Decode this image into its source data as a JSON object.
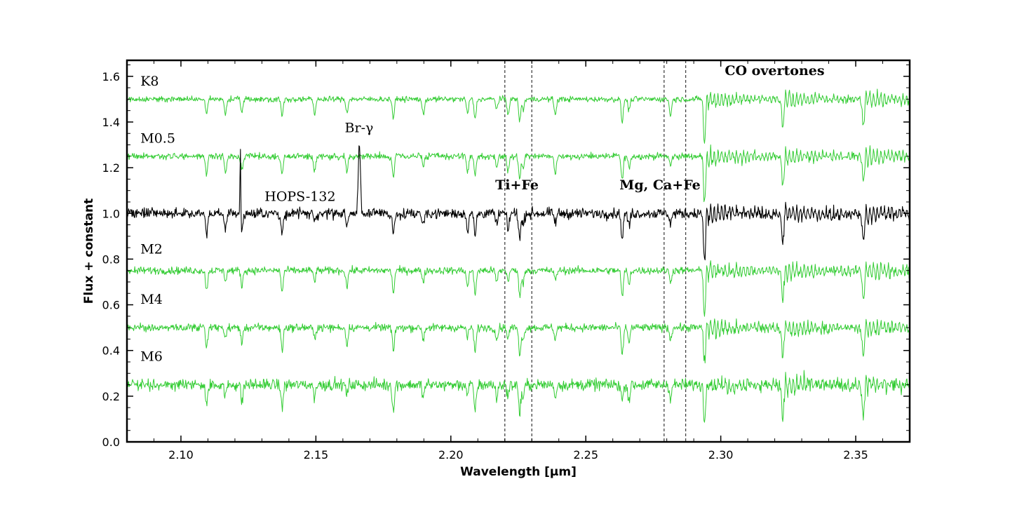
{
  "chart_data": {
    "type": "line",
    "xlabel": "Wavelength [μm]",
    "ylabel": "Flux + constant",
    "xlim": [
      2.08,
      2.37
    ],
    "ylim": [
      0.0,
      1.67
    ],
    "x_ticks": [
      2.1,
      2.15,
      2.2,
      2.25,
      2.3,
      2.35
    ],
    "x_tick_labels": [
      "2.10",
      "2.15",
      "2.20",
      "2.25",
      "2.30",
      "2.35"
    ],
    "y_ticks": [
      0.0,
      0.2,
      0.4,
      0.6,
      0.8,
      1.0,
      1.2,
      1.4,
      1.6
    ],
    "y_tick_labels": [
      "0.0",
      "0.2",
      "0.4",
      "0.6",
      "0.8",
      "1.0",
      "1.2",
      "1.4",
      "1.6"
    ],
    "grid": false,
    "colors": {
      "template": "#33cc33",
      "target": "#000000",
      "marker_lines": "#444444"
    },
    "marker_lines_x": [
      2.22,
      2.23,
      2.279,
      2.287
    ],
    "series": [
      {
        "name": "K8",
        "color": "#33cc33",
        "offset": 1.5,
        "noise": 0.012
      },
      {
        "name": "M0.5",
        "color": "#33cc33",
        "offset": 1.25,
        "noise": 0.014
      },
      {
        "name": "HOPS-132",
        "color": "#000000",
        "offset": 1.0,
        "noise": 0.022
      },
      {
        "name": "M2",
        "color": "#33cc33",
        "offset": 0.75,
        "noise": 0.016
      },
      {
        "name": "M4",
        "color": "#33cc33",
        "offset": 0.5,
        "noise": 0.017
      },
      {
        "name": "M6",
        "color": "#33cc33",
        "offset": 0.25,
        "noise": 0.025
      }
    ],
    "series_labels": [
      {
        "text": "K8",
        "x": 2.085,
        "y": 1.56
      },
      {
        "text": "M0.5",
        "x": 2.085,
        "y": 1.31
      },
      {
        "text": "HOPS-132",
        "x": 2.131,
        "y": 1.055
      },
      {
        "text": "M2",
        "x": 2.085,
        "y": 0.825
      },
      {
        "text": "M4",
        "x": 2.085,
        "y": 0.605
      },
      {
        "text": "M6",
        "x": 2.085,
        "y": 0.355
      }
    ],
    "annotations": [
      {
        "text": "Br-γ",
        "x": 2.166,
        "y": 1.355,
        "weight": "normal"
      },
      {
        "text": "Ti+Fe",
        "x": 2.2245,
        "y": 1.105,
        "weight": "bold"
      },
      {
        "text": "Mg, Ca+Fe",
        "x": 2.2775,
        "y": 1.105,
        "weight": "bold"
      },
      {
        "text": "CO overtones",
        "x": 2.3015,
        "y": 1.605,
        "weight": "bold"
      }
    ],
    "emission_lines": [
      {
        "name": "narrow spike",
        "x": 2.122,
        "height": 0.33,
        "series": "HOPS-132"
      },
      {
        "name": "Br-γ",
        "x": 2.1661,
        "height": 0.31,
        "series": "HOPS-132"
      }
    ],
    "absorption_lines": [
      2.1095,
      2.1165,
      2.1226,
      2.1375,
      2.1495,
      2.1615,
      2.1787,
      2.1898,
      2.2062,
      2.209,
      2.217,
      2.2212,
      2.2255,
      2.2268,
      2.2387,
      2.2635,
      2.266,
      2.2814,
      2.294,
      2.3227,
      2.3525
    ]
  }
}
